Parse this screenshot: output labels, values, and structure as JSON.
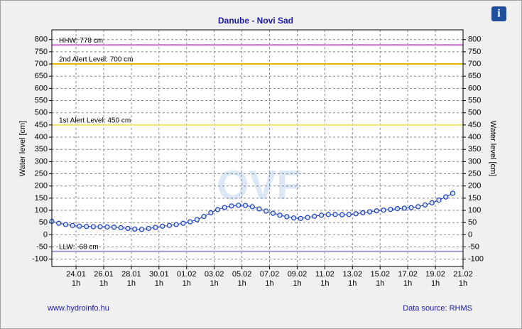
{
  "chart_data": {
    "type": "line",
    "title": "Danube - Novi Sad",
    "ylabel": "Water level [cm]",
    "y2label": "Water level [cm]",
    "footer_left": "www.hydroinfo.hu",
    "footer_right": "Data source: RHMS",
    "info_button": "i",
    "watermark": "OVF",
    "ylim": [
      -130,
      840
    ],
    "yticks": [
      -100,
      -50,
      0,
      50,
      100,
      150,
      200,
      250,
      300,
      350,
      400,
      450,
      500,
      550,
      600,
      650,
      700,
      750,
      800
    ],
    "xlim": [
      "22.01 7h",
      "21.02 1h"
    ],
    "xticks": [
      {
        "date": "24.01",
        "hour": "1h"
      },
      {
        "date": "26.01",
        "hour": "1h"
      },
      {
        "date": "28.01",
        "hour": "1h"
      },
      {
        "date": "30.01",
        "hour": "1h"
      },
      {
        "date": "01.02",
        "hour": "1h"
      },
      {
        "date": "03.02",
        "hour": "1h"
      },
      {
        "date": "05.02",
        "hour": "1h"
      },
      {
        "date": "07.02",
        "hour": "1h"
      },
      {
        "date": "09.02",
        "hour": "1h"
      },
      {
        "date": "11.02",
        "hour": "1h"
      },
      {
        "date": "13.02",
        "hour": "1h"
      },
      {
        "date": "15.02",
        "hour": "1h"
      },
      {
        "date": "17.02",
        "hour": "1h"
      },
      {
        "date": "19.02",
        "hour": "1h"
      },
      {
        "date": "21.02",
        "hour": "1h"
      }
    ],
    "grid": true,
    "reference_lines": [
      {
        "label": "HHW: 778 cm",
        "value": 778,
        "color": "#cc66cc"
      },
      {
        "label": "2nd Alert Level: 700 cm",
        "value": 700,
        "color": "#e8b400"
      },
      {
        "label": "1st Alert Level: 450 cm",
        "value": 450,
        "color": "#f0e66a"
      },
      {
        "label": "LLW: -68 cm",
        "value": -68,
        "color": "#9a9ad0"
      }
    ],
    "x": [
      "22.01 7h",
      "22.01 19h",
      "23.01 7h",
      "23.01 19h",
      "24.01 7h",
      "24.01 19h",
      "25.01 7h",
      "25.01 19h",
      "26.01 7h",
      "26.01 19h",
      "27.01 7h",
      "27.01 19h",
      "28.01 7h",
      "28.01 19h",
      "29.01 7h",
      "29.01 19h",
      "30.01 7h",
      "30.01 19h",
      "31.01 7h",
      "31.01 19h",
      "01.02 7h",
      "01.02 19h",
      "02.02 7h",
      "02.02 19h",
      "03.02 7h",
      "03.02 19h",
      "04.02 7h",
      "04.02 19h",
      "05.02 7h",
      "05.02 19h",
      "06.02 7h",
      "06.02 19h",
      "07.02 7h",
      "07.02 19h",
      "08.02 7h",
      "08.02 19h",
      "09.02 7h",
      "09.02 19h",
      "10.02 7h",
      "10.02 19h",
      "11.02 7h",
      "11.02 19h",
      "12.02 7h",
      "12.02 19h",
      "13.02 7h",
      "13.02 19h",
      "14.02 7h",
      "14.02 19h",
      "15.02 7h",
      "15.02 19h",
      "16.02 7h",
      "16.02 19h",
      "17.02 7h",
      "17.02 19h",
      "18.02 7h",
      "18.02 19h",
      "19.02 7h",
      "19.02 19h",
      "20.02 7h"
    ],
    "series": [
      {
        "name": "Water level",
        "color": "#1a3dbd",
        "values": [
          55,
          47,
          42,
          38,
          35,
          34,
          33,
          33,
          32,
          31,
          29,
          26,
          23,
          22,
          26,
          30,
          35,
          38,
          42,
          47,
          53,
          62,
          75,
          90,
          103,
          112,
          118,
          121,
          120,
          115,
          106,
          97,
          88,
          80,
          74,
          69,
          67,
          71,
          76,
          80,
          83,
          83,
          82,
          83,
          86,
          90,
          94,
          98,
          101,
          104,
          107,
          109,
          111,
          115,
          122,
          131,
          142,
          155,
          170
        ]
      }
    ]
  }
}
